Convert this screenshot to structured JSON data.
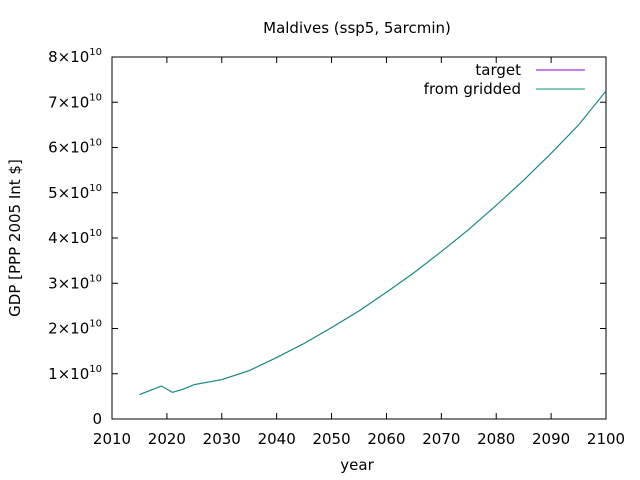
{
  "chart_data": {
    "type": "line",
    "title": "Maldives (ssp5, 5arcmin)",
    "xlabel": "year",
    "ylabel": "GDP [PPP 2005 Int $]",
    "xlim": [
      2010,
      2100
    ],
    "ylim": [
      0,
      80000000000.0
    ],
    "xticks": [
      2010,
      2020,
      2030,
      2040,
      2050,
      2060,
      2070,
      2080,
      2090,
      2100
    ],
    "xtick_labels": [
      "2010",
      "2020",
      "2030",
      "2040",
      "2050",
      "2060",
      "2070",
      "2080",
      "2090",
      "2100"
    ],
    "yticks": [
      0,
      10000000000.0,
      20000000000.0,
      30000000000.0,
      40000000000.0,
      50000000000.0,
      60000000000.0,
      70000000000.0,
      80000000000.0
    ],
    "ytick_labels": [
      {
        "mantissa": "0",
        "exponent": ""
      },
      {
        "mantissa": "1×10",
        "exponent": "10"
      },
      {
        "mantissa": "2×10",
        "exponent": "10"
      },
      {
        "mantissa": "3×10",
        "exponent": "10"
      },
      {
        "mantissa": "4×10",
        "exponent": "10"
      },
      {
        "mantissa": "5×10",
        "exponent": "10"
      },
      {
        "mantissa": "6×10",
        "exponent": "10"
      },
      {
        "mantissa": "7×10",
        "exponent": "10"
      },
      {
        "mantissa": "8×10",
        "exponent": "10"
      }
    ],
    "grid": false,
    "legend_position": "top-right",
    "series": [
      {
        "name": "target",
        "color": "#9400d3",
        "x": [
          2015,
          2019,
          2021,
          2023,
          2025,
          2030,
          2035,
          2040,
          2045,
          2050,
          2055,
          2060,
          2065,
          2070,
          2075,
          2080,
          2085,
          2090,
          2095,
          2100
        ],
        "y": [
          5400000000.0,
          7300000000.0,
          5900000000.0,
          6600000000.0,
          7600000000.0,
          8700000000.0,
          10700000000.0,
          13600000000.0,
          16700000000.0,
          20200000000.0,
          23900000000.0,
          28000000000.0,
          32300000000.0,
          37000000000.0,
          41900000000.0,
          47200000000.0,
          52800000000.0,
          58700000000.0,
          65000000000.0,
          72500000000.0
        ]
      },
      {
        "name": "from gridded",
        "color": "#009e73",
        "x": [
          2015,
          2019,
          2021,
          2023,
          2025,
          2030,
          2035,
          2040,
          2045,
          2050,
          2055,
          2060,
          2065,
          2070,
          2075,
          2080,
          2085,
          2090,
          2095,
          2100
        ],
        "y": [
          5400000000.0,
          7300000000.0,
          5900000000.0,
          6600000000.0,
          7600000000.0,
          8700000000.0,
          10700000000.0,
          13600000000.0,
          16700000000.0,
          20200000000.0,
          23900000000.0,
          28000000000.0,
          32300000000.0,
          37000000000.0,
          41900000000.0,
          47200000000.0,
          52800000000.0,
          58700000000.0,
          65000000000.0,
          72500000000.0
        ]
      }
    ]
  }
}
